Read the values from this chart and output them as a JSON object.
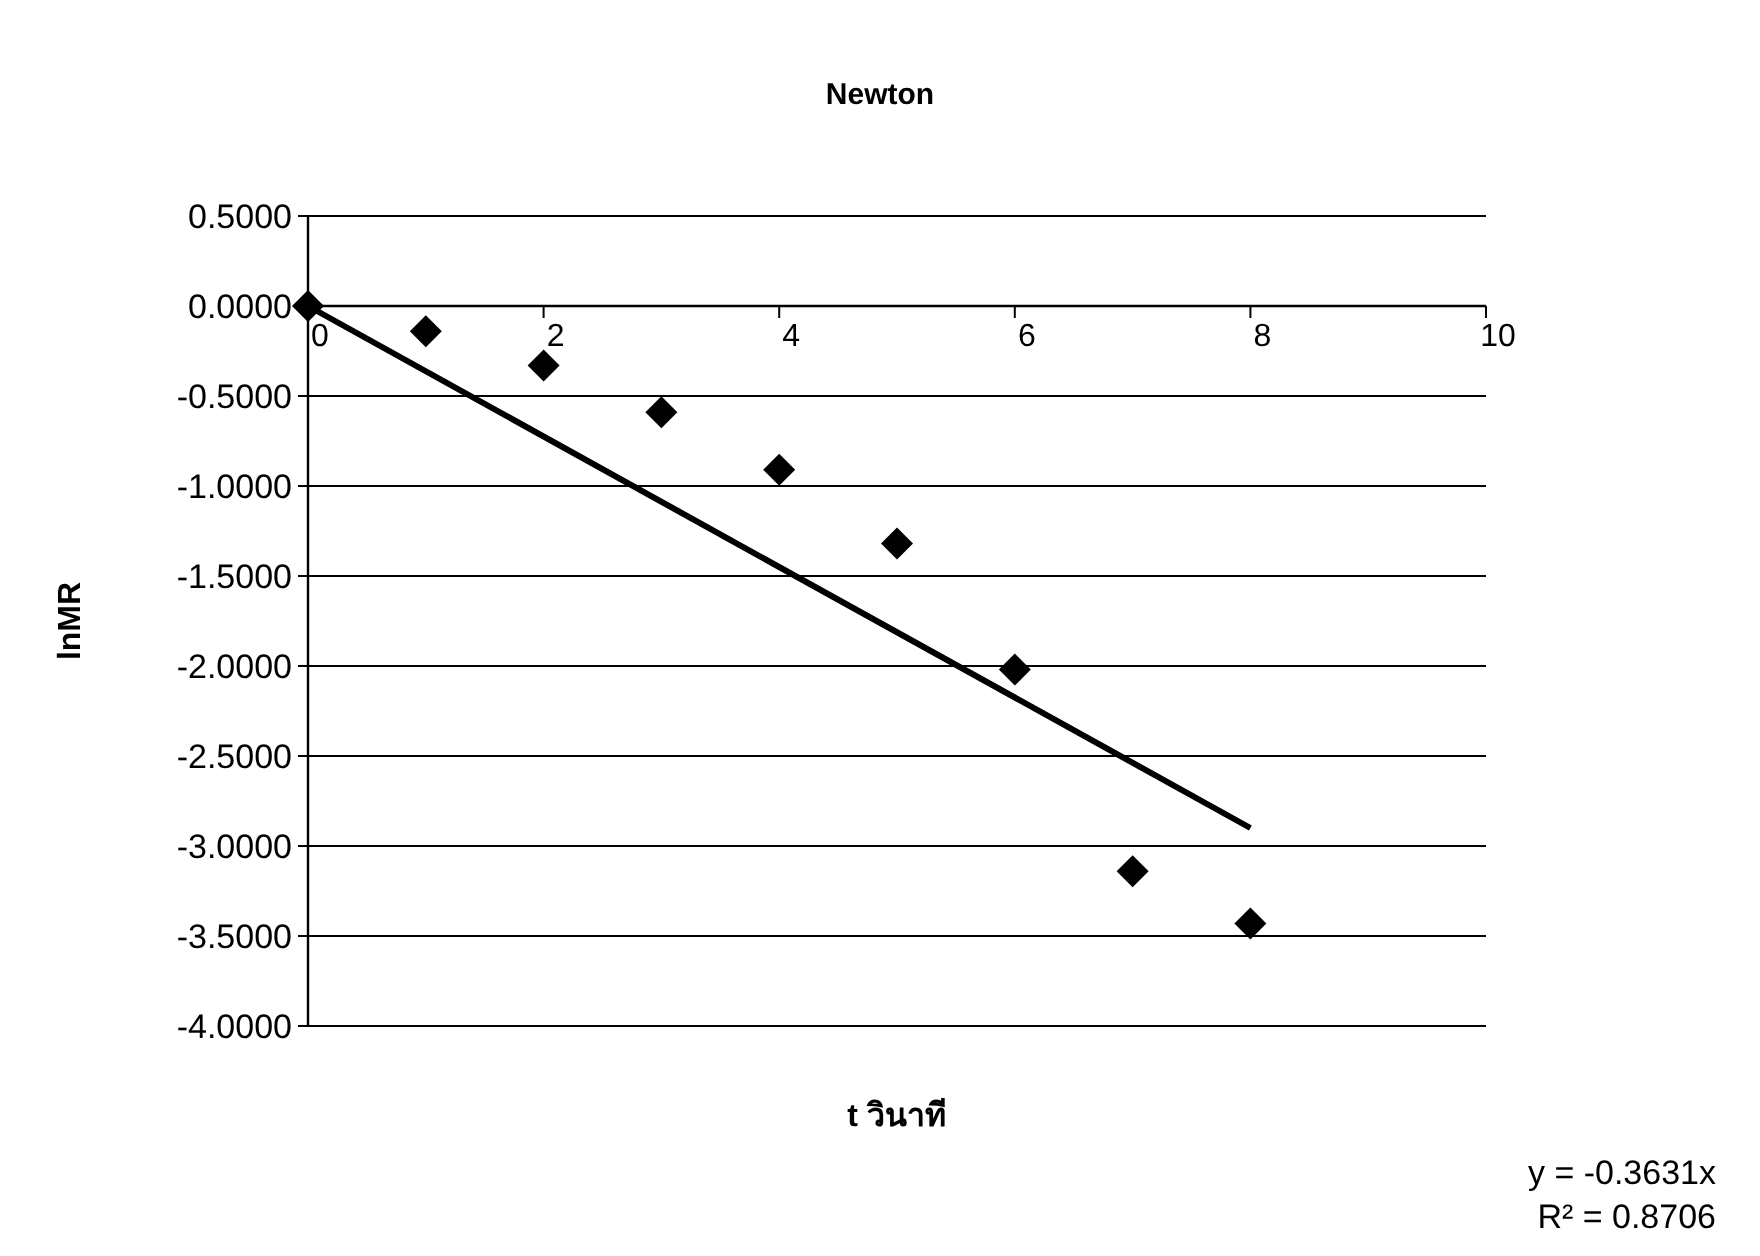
{
  "chart_data": {
    "type": "scatter",
    "title": "Newton",
    "xlabel": "t วินาที",
    "ylabel": "lnMR",
    "x": [
      0,
      1,
      2,
      3,
      4,
      5,
      6,
      7,
      8
    ],
    "series": [
      {
        "color": "#000000",
        "marker": "diamond",
        "values": [
          0,
          -0.14,
          -0.33,
          -0.59,
          -0.91,
          -1.32,
          -2.02,
          -3.14,
          -3.43
        ]
      },
      {
        "type": "line",
        "color": "#000000",
        "line_style": "solid",
        "x": [
          0,
          8
        ],
        "values": [
          0,
          -2.9
        ]
      }
    ],
    "xlim": [
      0,
      10
    ],
    "xticks": [
      0,
      2,
      4,
      6,
      8,
      10
    ],
    "ylim": [
      -4,
      0.5
    ],
    "yticks": [
      {
        "value": 0.5,
        "label": "0.5000"
      },
      {
        "value": 0,
        "label": "0.0000"
      },
      {
        "value": -0.5,
        "label": "-0.5000"
      },
      {
        "value": -1,
        "label": "-1.0000"
      },
      {
        "value": -1.5,
        "label": "-1.5000"
      },
      {
        "value": -2,
        "label": "-2.0000"
      },
      {
        "value": -2.5,
        "label": "-2.5000"
      },
      {
        "value": -3,
        "label": "-3.0000"
      },
      {
        "value": -3.5,
        "label": "-3.5000"
      },
      {
        "value": -4,
        "label": "-4.0000"
      }
    ],
    "grid": "y",
    "annotations": [
      "y = -0.3631x",
      "R² = 0.8706"
    ]
  }
}
